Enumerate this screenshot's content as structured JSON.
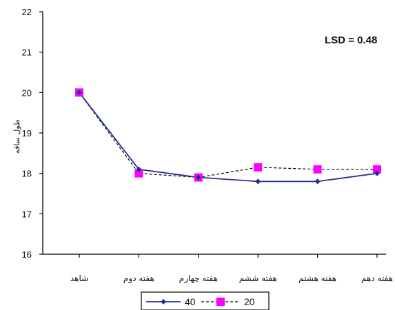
{
  "chart_data": {
    "type": "line",
    "categories": [
      "شاهد",
      "هفته دوم",
      "هفته چهارم",
      "هفته ششم",
      "هفته هشتم",
      "هفته دهم"
    ],
    "ylabel": "طول ساقه",
    "ylim": [
      16,
      22
    ],
    "yticks": [
      "16",
      "17",
      "18",
      "19",
      "20",
      "21",
      "22"
    ],
    "annotation": "LSD = 0.48",
    "grid": false,
    "legend_position": "bottom",
    "series": [
      {
        "name": "40",
        "values": [
          20.0,
          18.1,
          17.9,
          17.8,
          17.8,
          18.0
        ],
        "color": "#1f2f8f",
        "line": "solid",
        "marker": "diamond"
      },
      {
        "name": "20",
        "values": [
          20.0,
          18.0,
          17.9,
          18.15,
          18.1,
          18.1
        ],
        "color": "#ff00ff",
        "line": "dashed",
        "marker": "square"
      }
    ]
  }
}
